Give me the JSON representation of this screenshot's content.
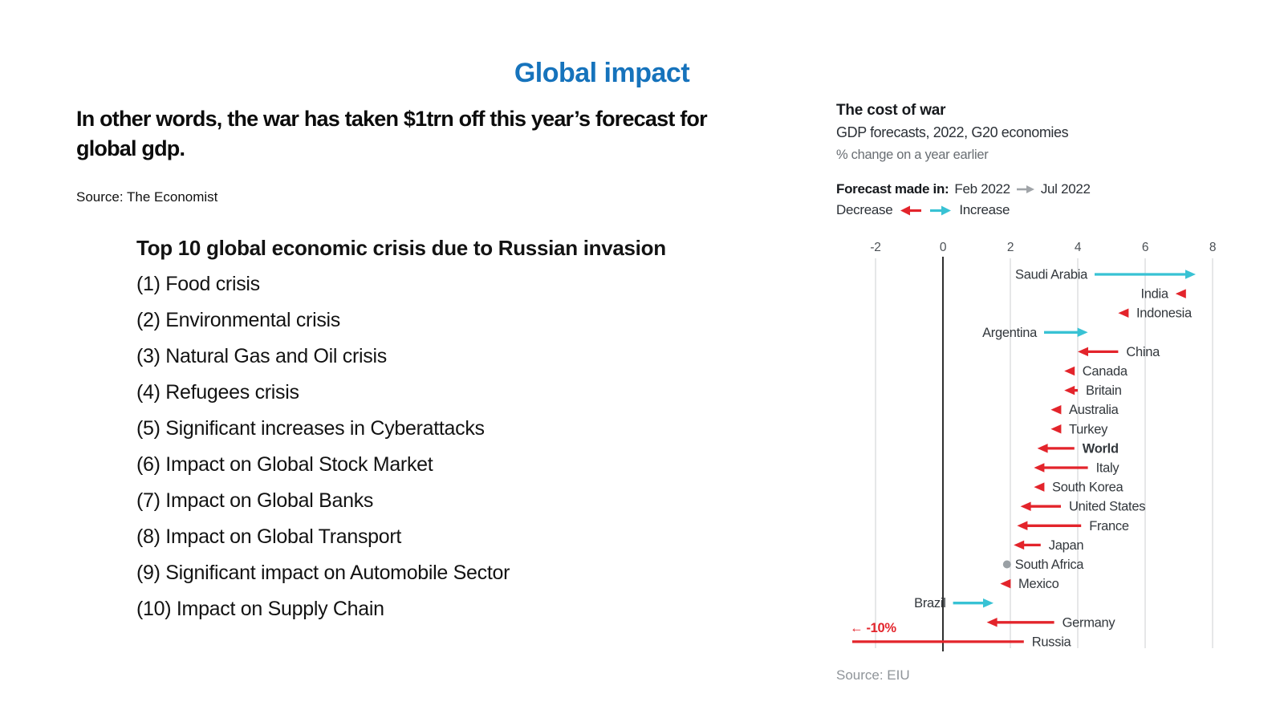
{
  "slide": {
    "title": "Global impact",
    "statement": "In other words, the war has taken $1trn off this year’s forecast for global gdp.",
    "source": "Source: The Economist",
    "list": {
      "heading": "Top 10 global economic crisis due to Russian invasion",
      "items": [
        "(1) Food crisis",
        "(2) Environmental crisis",
        "(3) Natural Gas and Oil crisis",
        "(4) Refugees crisis",
        "(5) Significant increases in Cyberattacks",
        "(6) Impact on Global Stock Market",
        "(7) Impact on Global Banks",
        "(8) Impact on Global Transport",
        "(9) Significant impact on Automobile Sector",
        "(10) Impact on Supply Chain"
      ]
    }
  },
  "chart": {
    "title": "The cost of war",
    "subtitle": "GDP forecasts, 2022, G20 economies",
    "unit_label": "% change on a year earlier",
    "forecast_label": "Forecast made in:",
    "forecast_from": "Feb 2022",
    "forecast_to": "Jul 2022",
    "legend_decrease": "Decrease",
    "legend_increase": "Increase",
    "source": "Source: EIU"
  },
  "colors": {
    "title_blue": "#1673bc",
    "decrease_red": "#e3242b",
    "increase_cyan": "#38c2d4",
    "no_change_gray": "#9aa0a5",
    "grid_gray": "#d8dadc",
    "zero_axis": "#2f2f2f",
    "label_dark": "#33383d",
    "tick_gray": "#4b5055",
    "legend_arrow_gray": "#a0a4a8"
  },
  "chart_data": {
    "type": "scatter",
    "subtype": "dumbbell-arrow-change",
    "title": "The cost of war",
    "subtitle": "GDP forecasts, 2022, G20 economies",
    "value_note": "% change on a year earlier",
    "series_names": [
      "Feb 2022",
      "Jul 2022"
    ],
    "xlim": [
      -2,
      8
    ],
    "x_ticks": [
      -2,
      0,
      2,
      4,
      6,
      8
    ],
    "grid": true,
    "rows": [
      {
        "label": "Saudi Arabia",
        "feb": 4.5,
        "jul": 7.5,
        "change": "increase",
        "label_side": "left"
      },
      {
        "label": "India",
        "feb": 7.1,
        "jul": 6.9,
        "change": "decrease",
        "label_side": "left"
      },
      {
        "label": "Indonesia",
        "feb": 5.5,
        "jul": 5.2,
        "change": "decrease",
        "label_side": "right"
      },
      {
        "label": "Argentina",
        "feb": 3.0,
        "jul": 4.3,
        "change": "increase",
        "label_side": "left"
      },
      {
        "label": "China",
        "feb": 5.2,
        "jul": 4.0,
        "change": "decrease",
        "label_side": "right"
      },
      {
        "label": "Canada",
        "feb": 3.9,
        "jul": 3.6,
        "change": "decrease",
        "label_side": "right"
      },
      {
        "label": "Britain",
        "feb": 4.0,
        "jul": 3.6,
        "change": "decrease",
        "label_side": "right"
      },
      {
        "label": "Australia",
        "feb": 3.5,
        "jul": 3.2,
        "change": "decrease",
        "label_side": "right"
      },
      {
        "label": "Turkey",
        "feb": 3.5,
        "jul": 3.2,
        "change": "decrease",
        "label_side": "right"
      },
      {
        "label": "World",
        "feb": 3.9,
        "jul": 2.8,
        "change": "decrease",
        "label_side": "right",
        "bold": true
      },
      {
        "label": "Italy",
        "feb": 4.3,
        "jul": 2.7,
        "change": "decrease",
        "label_side": "right"
      },
      {
        "label": "South Korea",
        "feb": 3.0,
        "jul": 2.7,
        "change": "decrease",
        "label_side": "right"
      },
      {
        "label": "United States",
        "feb": 3.5,
        "jul": 2.3,
        "change": "decrease",
        "label_side": "right"
      },
      {
        "label": "France",
        "feb": 4.1,
        "jul": 2.2,
        "change": "decrease",
        "label_side": "right"
      },
      {
        "label": "Japan",
        "feb": 2.9,
        "jul": 2.1,
        "change": "decrease",
        "label_side": "right"
      },
      {
        "label": "South Africa",
        "feb": 1.9,
        "jul": 1.9,
        "change": "none",
        "label_side": "right"
      },
      {
        "label": "Mexico",
        "feb": 2.0,
        "jul": 1.7,
        "change": "decrease",
        "label_side": "right"
      },
      {
        "label": "Brazil",
        "feb": 0.3,
        "jul": 1.5,
        "change": "increase",
        "label_side": "left"
      },
      {
        "label": "Germany",
        "feb": 3.3,
        "jul": 1.3,
        "change": "decrease",
        "label_side": "right"
      },
      {
        "label": "Russia",
        "feb": 2.4,
        "jul": -10,
        "change": "decrease",
        "label_side": "right",
        "off_scale": true,
        "annotation": "← -10%"
      }
    ]
  }
}
